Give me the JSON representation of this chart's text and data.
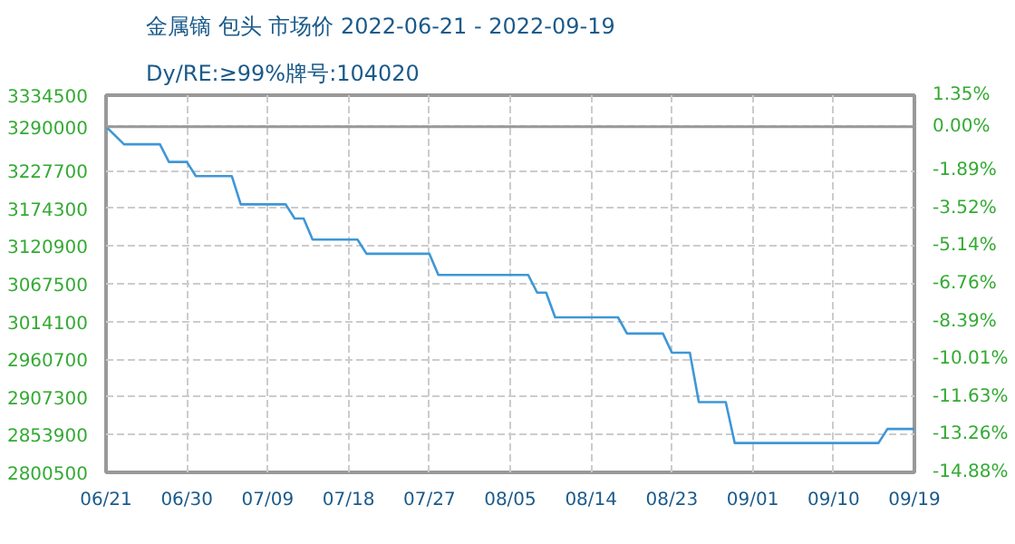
{
  "chart_data": {
    "type": "line",
    "title": "金属镝 包头 市场价 2022-06-21 - 2022-09-19",
    "subtitle": "Dy/RE:≥99%牌号:104020",
    "x": [
      "2022-06-21",
      "2022-06-23",
      "2022-06-27",
      "2022-06-28",
      "2022-06-30",
      "2022-07-01",
      "2022-07-05",
      "2022-07-06",
      "2022-07-11",
      "2022-07-12",
      "2022-07-13",
      "2022-07-14",
      "2022-07-19",
      "2022-07-20",
      "2022-07-27",
      "2022-07-28",
      "2022-08-07",
      "2022-08-08",
      "2022-08-09",
      "2022-08-10",
      "2022-08-17",
      "2022-08-18",
      "2022-08-22",
      "2022-08-23",
      "2022-08-25",
      "2022-08-26",
      "2022-08-29",
      "2022-08-30",
      "2022-09-15",
      "2022-09-16",
      "2022-09-19"
    ],
    "series": [
      {
        "color": "#3f97d6",
        "values": [
          3290000,
          3265000,
          3265000,
          3240000,
          3240000,
          3220000,
          3220000,
          3180000,
          3180000,
          3160000,
          3160000,
          3130000,
          3130000,
          3110000,
          3110000,
          3080000,
          3080000,
          3055000,
          3055000,
          3020000,
          3020000,
          2997000,
          2997000,
          2970000,
          2970000,
          2900000,
          2900000,
          2842000,
          2842000,
          2862000,
          2862000
        ]
      }
    ],
    "xlim": [
      "2022-06-21",
      "2022-09-19"
    ],
    "xticks": [
      {
        "value": "2022-06-21",
        "label": "06/21"
      },
      {
        "value": "2022-06-30",
        "label": "06/30"
      },
      {
        "value": "2022-07-09",
        "label": "07/09"
      },
      {
        "value": "2022-07-18",
        "label": "07/18"
      },
      {
        "value": "2022-07-27",
        "label": "07/27"
      },
      {
        "value": "2022-08-05",
        "label": "08/05"
      },
      {
        "value": "2022-08-14",
        "label": "08/14"
      },
      {
        "value": "2022-08-23",
        "label": "08/23"
      },
      {
        "value": "2022-09-01",
        "label": "09/01"
      },
      {
        "value": "2022-09-10",
        "label": "09/10"
      },
      {
        "value": "2022-09-19",
        "label": "09/19"
      }
    ],
    "ylim": [
      2800500,
      3334500
    ],
    "yticks": [
      2800500,
      2853900,
      2907300,
      2960700,
      3014100,
      3067500,
      3120900,
      3174300,
      3227700,
      3290000,
      3334500
    ],
    "y2lim": [
      -14.88,
      1.35
    ],
    "y2ticks": [
      {
        "value": -14.88,
        "label": "-14.88%"
      },
      {
        "value": -13.26,
        "label": "-13.26%"
      },
      {
        "value": -11.63,
        "label": "-11.63%"
      },
      {
        "value": -10.01,
        "label": "-10.01%"
      },
      {
        "value": -8.39,
        "label": "-8.39%"
      },
      {
        "value": -6.76,
        "label": "-6.76%"
      },
      {
        "value": -5.14,
        "label": "-5.14%"
      },
      {
        "value": -3.52,
        "label": "-3.52%"
      },
      {
        "value": -1.89,
        "label": "-1.89%"
      },
      {
        "value": 0.0,
        "label": "0.00%"
      },
      {
        "value": 1.35,
        "label": "1.35%"
      }
    ],
    "ref_lines": [
      {
        "axis": "y",
        "value": 3290000,
        "color": "#999999"
      }
    ],
    "grid": true,
    "marker": "none",
    "line_style": "solid"
  }
}
